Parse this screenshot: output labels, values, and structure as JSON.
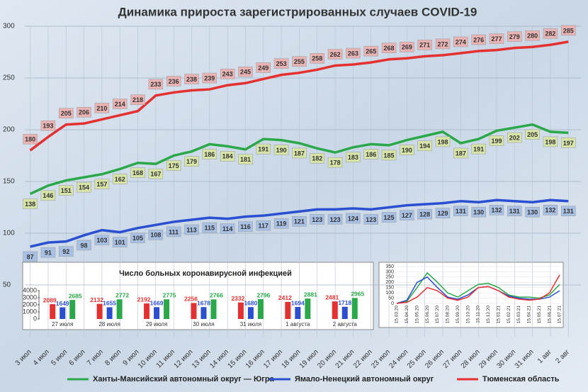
{
  "chart_data": [
    {
      "type": "line",
      "title": "Динамика прироста зарегистрированных случаев COVID-19",
      "categories": [
        "3 июл",
        "4 июл",
        "5 июл",
        "6 июл",
        "7 июл",
        "8 июл",
        "9 июл",
        "10 июл",
        "11 июл",
        "12 июл",
        "13 июл",
        "14 июл",
        "15 июл",
        "16 июл",
        "17 июл",
        "18 июл",
        "19 июл",
        "20 июл",
        "21 июл",
        "22 июл",
        "23 июл",
        "24 июл",
        "25 июл",
        "26 июл",
        "27 июл",
        "28 июл",
        "29 июл",
        "30 июл",
        "31 июл",
        "1 авг",
        "2 авг"
      ],
      "series": [
        {
          "name": "Ханты-Мансийский автономный округ — Югра",
          "color": "#2aa84a",
          "values": [
            138,
            146,
            151,
            154,
            157,
            162,
            168,
            167,
            175,
            179,
            186,
            184,
            181,
            191,
            190,
            187,
            182,
            178,
            183,
            186,
            185,
            190,
            194,
            198,
            187,
            191,
            199,
            202,
            205,
            198,
            197
          ]
        },
        {
          "name": "Ямало-Ненецкий автономный округ",
          "color": "#2a4fd0",
          "values": [
            87,
            91,
            92,
            98,
            103,
            101,
            105,
            108,
            111,
            113,
            115,
            114,
            116,
            117,
            119,
            121,
            123,
            123,
            124,
            123,
            125,
            127,
            128,
            129,
            131,
            130,
            132,
            131,
            130,
            132,
            131
          ]
        },
        {
          "name": "Тюменская область",
          "color": "#e53030",
          "values": [
            180,
            193,
            205,
            206,
            210,
            214,
            218,
            233,
            236,
            238,
            239,
            243,
            245,
            249,
            253,
            255,
            258,
            262,
            263,
            265,
            268,
            269,
            271,
            272,
            274,
            276,
            277,
            279,
            280,
            282,
            285
          ]
        }
      ],
      "ylim": [
        0,
        300
      ],
      "yticks": [
        50,
        100,
        150,
        200,
        250,
        300
      ],
      "grid": true
    },
    {
      "type": "bar",
      "title": "Число больных  коронавирусной  инфекцией",
      "categories": [
        "27 июля",
        "28 июля",
        "29 июля",
        "30 июля",
        "31 июля",
        "1 августа",
        "2 августа"
      ],
      "series": [
        {
          "color": "#e53030",
          "values": [
            2089,
            2132,
            2192,
            2256,
            2332,
            2412,
            2481
          ]
        },
        {
          "color": "#2a4fd0",
          "values": [
            1649,
            1655,
            1669,
            1678,
            1680,
            1694,
            1718
          ]
        },
        {
          "color": "#2aa84a",
          "values": [
            2685,
            2772,
            2775,
            2766,
            2796,
            2881,
            2965
          ]
        }
      ],
      "ylim": [
        0,
        4000
      ],
      "yticks": [
        0,
        1000,
        2000,
        3000,
        4000
      ]
    },
    {
      "type": "line",
      "categories": [
        "15.03.20",
        "15.04.20",
        "15.05.20",
        "15.06.20",
        "15.07.20",
        "15.08.20",
        "15.09.20",
        "15.10.20",
        "15.11.20",
        "15.12.20",
        "15.01.21",
        "15.02.21",
        "15.03.21",
        "15.04.21",
        "15.05.21",
        "15.06.21",
        "15.07.21"
      ],
      "series": [
        {
          "color": "#2aa84a",
          "values": [
            0,
            20,
            150,
            290,
            200,
            100,
            60,
            120,
            180,
            190,
            150,
            80,
            60,
            60,
            50,
            80,
            180
          ]
        },
        {
          "color": "#2a4fd0",
          "values": [
            0,
            30,
            200,
            250,
            150,
            60,
            40,
            80,
            150,
            160,
            120,
            70,
            50,
            40,
            40,
            60,
            120
          ]
        },
        {
          "color": "#e53030",
          "values": [
            0,
            10,
            60,
            150,
            120,
            50,
            30,
            60,
            150,
            160,
            120,
            60,
            40,
            30,
            40,
            100,
            270
          ]
        }
      ],
      "ylim": [
        0,
        350
      ],
      "yticks": [
        0,
        50,
        100,
        150,
        200,
        250,
        300,
        350
      ],
      "grid": true
    }
  ]
}
